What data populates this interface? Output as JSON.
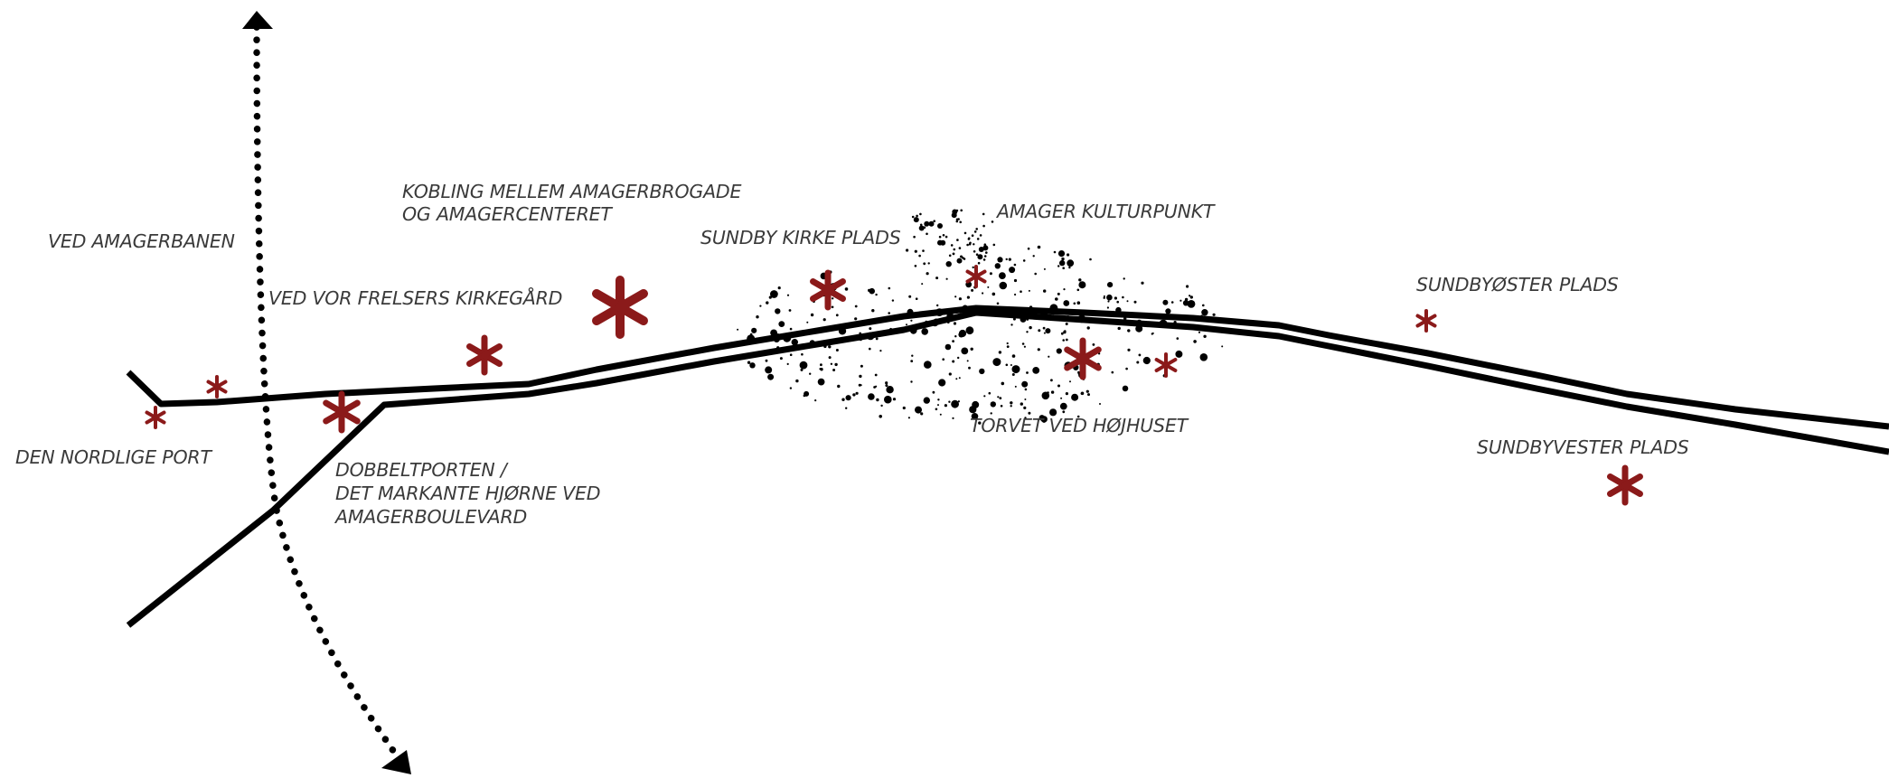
{
  "labels": {
    "ved_amagerbanen": "VED AMAGERBANEN",
    "ved_vor_frelsers": "VED VOR FRELSERS KIRKEGÅRD",
    "kobling_1": "KOBLING MELLEM AMAGERBROGADE",
    "kobling_2": "OG AMAGERCENTERET",
    "sundby_kirke_plads": "SUNDBY KIRKE PLADS",
    "amager_kulturpunkt": "AMAGER KULTURPUNKT",
    "sundbyoster_plads": "SUNDBYØSTER PLADS",
    "den_nordlige_port": "DEN NORDLIGE PORT",
    "dobbeltporten_1": "DOBBELTPORTEN /",
    "dobbeltporten_2": "DET MARKANTE HJØRNE VED",
    "dobbeltporten_3": "AMAGERBOULEVARD",
    "torvet_ved_hojhuset": "TORVET VED HØJHUSET",
    "sundbyvester_plads": "SUNDBYVESTER PLADS"
  },
  "colors": {
    "road": "#000000",
    "asterisk": "#8b1a1a",
    "text": "#3a3a3a"
  },
  "icons": {
    "place_marker": "asterisk-icon",
    "axis_arrow": "arrowhead-icon"
  }
}
